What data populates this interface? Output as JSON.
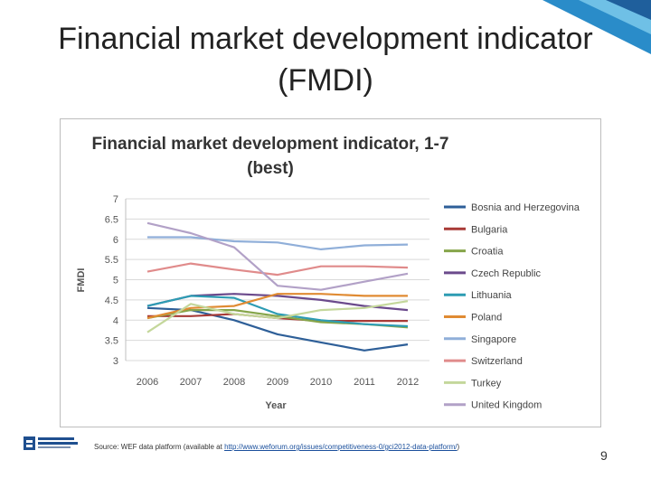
{
  "slide": {
    "title": "Financial market development indicator (FMDI)",
    "source_prefix": "Source: WEF data platform (available at ",
    "source_link": "http://www.weforum.org/issues/competitiveness-0/gci2012-data-platform/",
    "source_suffix": ")",
    "page_number": "9"
  },
  "chart_data": {
    "type": "line",
    "title": "Financial market development indicator, 1-7 (best)",
    "xlabel": "Year",
    "ylabel": "FMDI",
    "x": [
      "2006",
      "2007",
      "2008",
      "2009",
      "2010",
      "2011",
      "2012"
    ],
    "ylim": [
      3,
      7
    ],
    "yticks": [
      "3",
      "3.5",
      "4",
      "4.5",
      "5",
      "5.5",
      "6",
      "6.5",
      "7"
    ],
    "grid": true,
    "legend_position": "right",
    "series": [
      {
        "name": "Bosnia and Herzegovina",
        "color": "#2e5f98",
        "values": [
          4.3,
          4.25,
          4.0,
          3.65,
          3.45,
          3.25,
          3.4
        ]
      },
      {
        "name": "Bulgaria",
        "color": "#a83a36",
        "values": [
          4.1,
          4.1,
          4.15,
          4.05,
          3.98,
          3.98,
          3.98
        ]
      },
      {
        "name": "Croatia",
        "color": "#86a54a",
        "values": [
          4.05,
          4.25,
          4.25,
          4.1,
          3.95,
          3.9,
          3.82
        ]
      },
      {
        "name": "Czech Republic",
        "color": "#6b4a8c",
        "values": [
          4.35,
          4.6,
          4.65,
          4.6,
          4.5,
          4.35,
          4.25
        ]
      },
      {
        "name": "Lithuania",
        "color": "#2d9cb3",
        "values": [
          4.35,
          4.6,
          4.55,
          4.15,
          4.0,
          3.9,
          3.85
        ]
      },
      {
        "name": "Poland",
        "color": "#e08b33",
        "values": [
          4.05,
          4.3,
          4.35,
          4.65,
          4.65,
          4.6,
          4.6
        ]
      },
      {
        "name": "Singapore",
        "color": "#90afd9",
        "values": [
          6.05,
          6.05,
          5.95,
          5.92,
          5.75,
          5.85,
          5.87
        ]
      },
      {
        "name": "Switzerland",
        "color": "#e08b8b",
        "values": [
          5.2,
          5.4,
          5.25,
          5.12,
          5.33,
          5.33,
          5.3
        ]
      },
      {
        "name": "Turkey",
        "color": "#c4d79b",
        "values": [
          3.7,
          4.4,
          4.15,
          4.05,
          4.25,
          4.3,
          4.47
        ]
      },
      {
        "name": "United Kingdom",
        "color": "#b2a1c7",
        "values": [
          6.4,
          6.15,
          5.8,
          4.85,
          4.75,
          4.95,
          5.15
        ]
      }
    ]
  }
}
